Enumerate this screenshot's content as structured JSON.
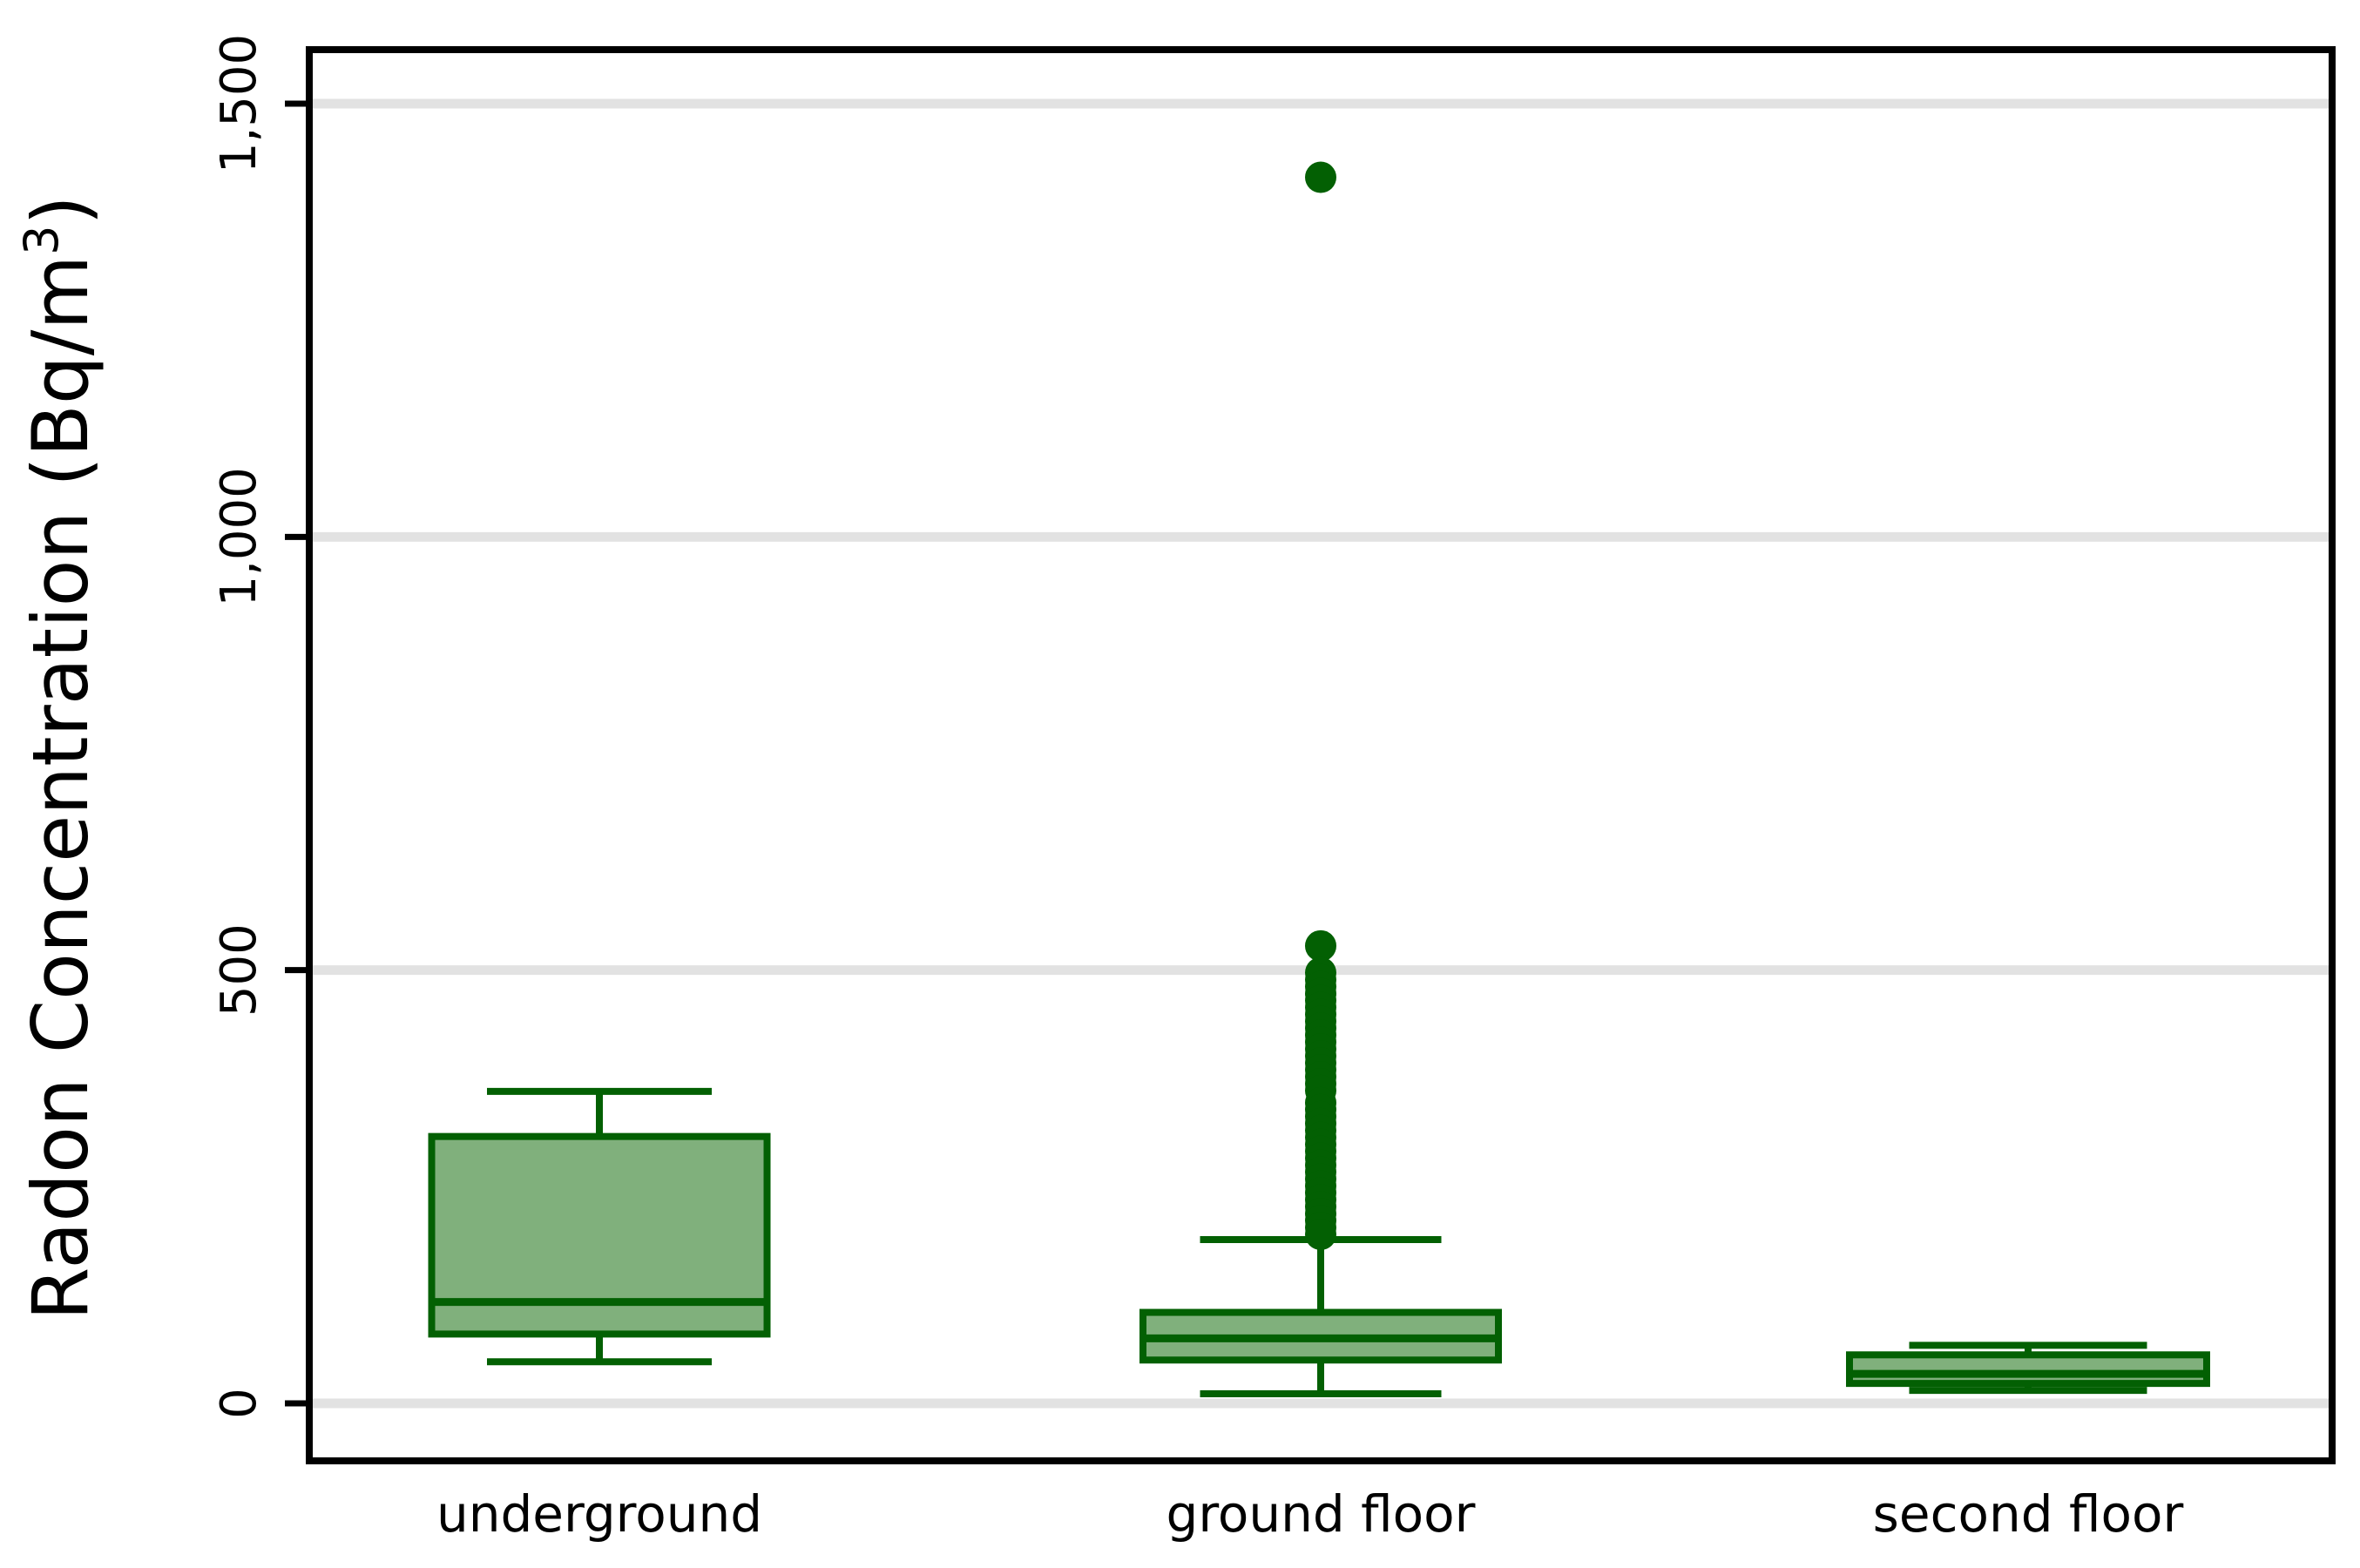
{
  "chart_data": {
    "type": "box",
    "title": "",
    "xlabel": "",
    "ylabel": {
      "main": "Radon Concentration (Bq/m",
      "superscript": "3",
      "suffix": ")"
    },
    "categories": [
      "underground",
      "ground floor",
      "second floor"
    ],
    "y_axis": {
      "ticks": [
        {
          "value": 0,
          "label": "0"
        },
        {
          "value": 500,
          "label": "500"
        },
        {
          "value": 1000,
          "label": "1,000"
        },
        {
          "value": 1500,
          "label": "1,500"
        }
      ],
      "range": [
        -66,
        1563
      ],
      "grid": true
    },
    "legend": null,
    "boxes": [
      {
        "category": "underground",
        "whisker_low": 48,
        "q1": 80,
        "median": 117,
        "q3": 308,
        "whisker_high": 360,
        "outliers": []
      },
      {
        "category": "ground floor",
        "whisker_low": 11,
        "q1": 50,
        "median": 75,
        "q3": 105,
        "whisker_high": 189,
        "outliers": [
          1415,
          528,
          497,
          489,
          481,
          473,
          465,
          457,
          449,
          441,
          433,
          425,
          417,
          409,
          401,
          393,
          385,
          377,
          369,
          361,
          347,
          339,
          331,
          323,
          315,
          307,
          299,
          291,
          283,
          275,
          267,
          259,
          251,
          243,
          235,
          227,
          219,
          211,
          203,
          195
        ]
      },
      {
        "category": "second floor",
        "whisker_low": 15,
        "q1": 23,
        "median": 34,
        "q3": 56,
        "whisker_high": 67,
        "outliers": []
      }
    ],
    "colors": {
      "background": "#ffffff",
      "box_fill": "#80b07c",
      "box_line": "#036003",
      "grid": "#e2e2e2",
      "axis": "#000000",
      "text": "#000000"
    }
  }
}
